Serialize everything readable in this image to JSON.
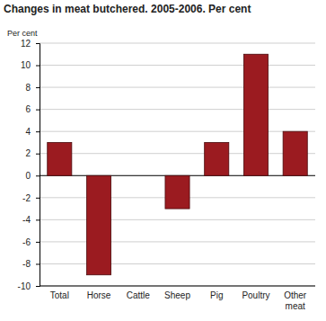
{
  "chart_data": {
    "type": "bar",
    "title": "Changes in meat butchered. 2005-2006. Per cent",
    "ylabel": "Per cent",
    "categories": [
      "Total",
      "Horse",
      "Cattle",
      "Sheep",
      "Pig",
      "Poultry",
      "Other meat"
    ],
    "values": [
      3,
      -9,
      0,
      -3,
      3,
      11,
      4
    ],
    "color": "#9b1b20",
    "ylim": [
      -10,
      12
    ],
    "yticks": [
      -10,
      -8,
      -6,
      -4,
      -2,
      0,
      2,
      4,
      6,
      8,
      10,
      12
    ],
    "grid": true
  }
}
